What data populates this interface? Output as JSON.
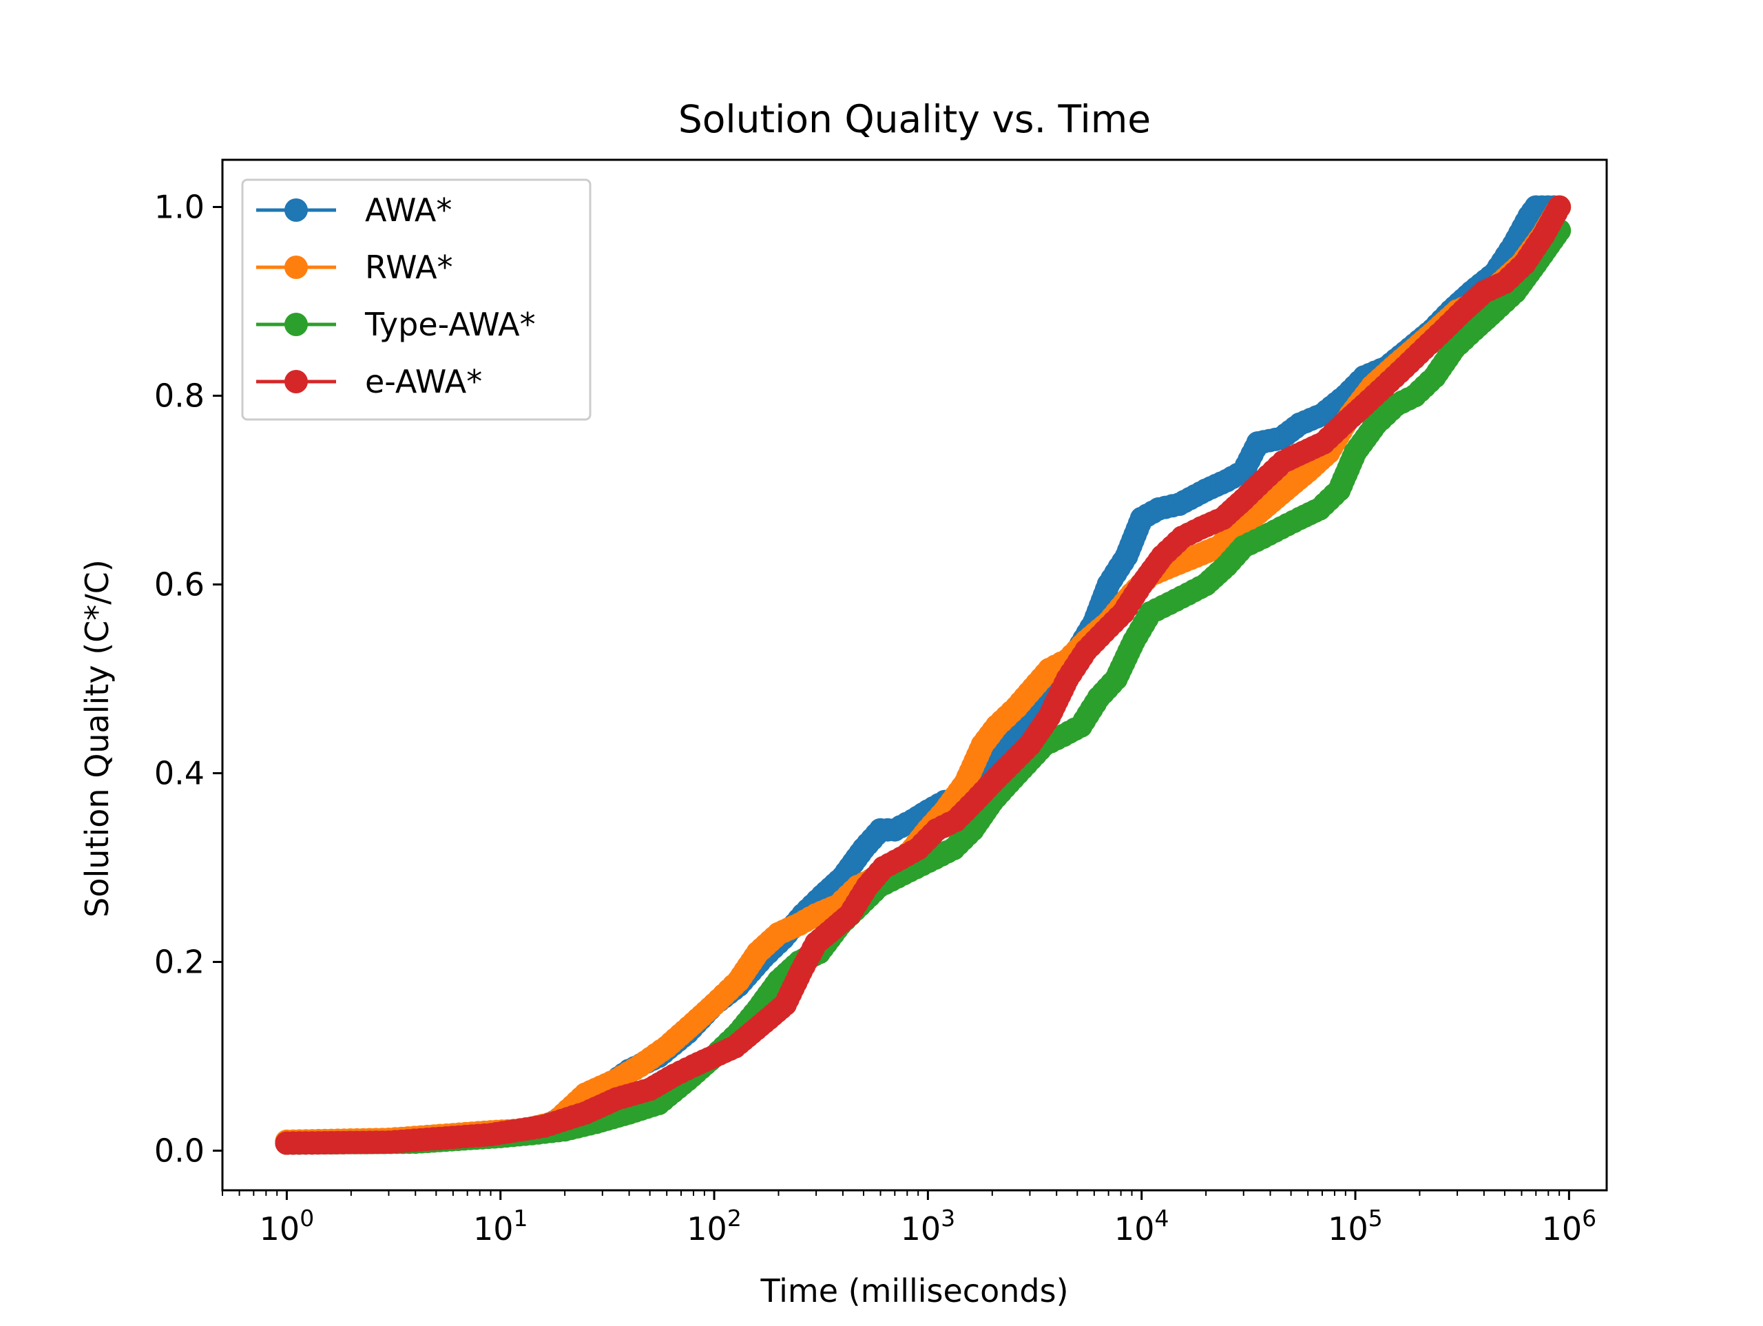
{
  "chart_data": {
    "type": "line",
    "title": "Solution Quality vs. Time",
    "xlabel": "Time (milliseconds)",
    "ylabel": "Solution Quality (C*/C)",
    "xscale": "log",
    "xlim": [
      0.5,
      1500000
    ],
    "ylim": [
      -0.042,
      1.05
    ],
    "xticks": [
      {
        "value": 1,
        "base": "10",
        "exp": "0"
      },
      {
        "value": 10,
        "base": "10",
        "exp": "1"
      },
      {
        "value": 100,
        "base": "10",
        "exp": "2"
      },
      {
        "value": 1000,
        "base": "10",
        "exp": "3"
      },
      {
        "value": 10000,
        "base": "10",
        "exp": "4"
      },
      {
        "value": 100000,
        "base": "10",
        "exp": "5"
      },
      {
        "value": 1000000,
        "base": "10",
        "exp": "6"
      }
    ],
    "yticks": [
      {
        "value": 0.0,
        "label": "0.0"
      },
      {
        "value": 0.2,
        "label": "0.2"
      },
      {
        "value": 0.4,
        "label": "0.4"
      },
      {
        "value": 0.6,
        "label": "0.6"
      },
      {
        "value": 0.8,
        "label": "0.8"
      },
      {
        "value": 1.0,
        "label": "1.0"
      }
    ],
    "grid": false,
    "legend_position": "top-left",
    "series": [
      {
        "name": "AWA*",
        "color": "#1f77b4",
        "points": [
          [
            1,
            0.008
          ],
          [
            3,
            0.009
          ],
          [
            9,
            0.016
          ],
          [
            12,
            0.02
          ],
          [
            17,
            0.027
          ],
          [
            22,
            0.045
          ],
          [
            30,
            0.065
          ],
          [
            40,
            0.085
          ],
          [
            55,
            0.1
          ],
          [
            75,
            0.125
          ],
          [
            100,
            0.155
          ],
          [
            130,
            0.175
          ],
          [
            170,
            0.205
          ],
          [
            210,
            0.225
          ],
          [
            260,
            0.25
          ],
          [
            320,
            0.27
          ],
          [
            400,
            0.29
          ],
          [
            500,
            0.32
          ],
          [
            600,
            0.34
          ],
          [
            700,
            0.34
          ],
          [
            850,
            0.35
          ],
          [
            1000,
            0.36
          ],
          [
            1200,
            0.37
          ],
          [
            1500,
            0.375
          ],
          [
            1800,
            0.4
          ],
          [
            2200,
            0.43
          ],
          [
            2700,
            0.45
          ],
          [
            3300,
            0.47
          ],
          [
            4000,
            0.5
          ],
          [
            5000,
            0.53
          ],
          [
            6000,
            0.56
          ],
          [
            7000,
            0.6
          ],
          [
            8500,
            0.63
          ],
          [
            10000,
            0.67
          ],
          [
            12000,
            0.68
          ],
          [
            15000,
            0.685
          ],
          [
            20000,
            0.7
          ],
          [
            25000,
            0.71
          ],
          [
            30000,
            0.72
          ],
          [
            35000,
            0.75
          ],
          [
            45000,
            0.755
          ],
          [
            55000,
            0.77
          ],
          [
            70000,
            0.78
          ],
          [
            90000,
            0.8
          ],
          [
            110000,
            0.82
          ],
          [
            140000,
            0.83
          ],
          [
            180000,
            0.85
          ],
          [
            230000,
            0.87
          ],
          [
            280000,
            0.89
          ],
          [
            350000,
            0.91
          ],
          [
            450000,
            0.93
          ],
          [
            550000,
            0.96
          ],
          [
            650000,
            0.99
          ],
          [
            700000,
            1.0
          ],
          [
            850000,
            1.0
          ]
        ]
      },
      {
        "name": "RWA*",
        "color": "#ff7f0e",
        "points": [
          [
            1,
            0.01
          ],
          [
            3,
            0.012
          ],
          [
            6,
            0.017
          ],
          [
            9,
            0.02
          ],
          [
            13,
            0.022
          ],
          [
            18,
            0.03
          ],
          [
            25,
            0.06
          ],
          [
            35,
            0.075
          ],
          [
            45,
            0.09
          ],
          [
            60,
            0.11
          ],
          [
            80,
            0.135
          ],
          [
            100,
            0.155
          ],
          [
            130,
            0.18
          ],
          [
            160,
            0.21
          ],
          [
            200,
            0.23
          ],
          [
            250,
            0.24
          ],
          [
            300,
            0.25
          ],
          [
            380,
            0.26
          ],
          [
            470,
            0.28
          ],
          [
            580,
            0.29
          ],
          [
            700,
            0.3
          ],
          [
            850,
            0.32
          ],
          [
            1000,
            0.34
          ],
          [
            1200,
            0.36
          ],
          [
            1500,
            0.39
          ],
          [
            1800,
            0.43
          ],
          [
            2100,
            0.45
          ],
          [
            2600,
            0.47
          ],
          [
            3100,
            0.49
          ],
          [
            3700,
            0.51
          ],
          [
            4500,
            0.52
          ],
          [
            5500,
            0.54
          ],
          [
            7000,
            0.56
          ],
          [
            9000,
            0.59
          ],
          [
            11000,
            0.61
          ],
          [
            14000,
            0.62
          ],
          [
            18000,
            0.63
          ],
          [
            23000,
            0.64
          ],
          [
            29000,
            0.66
          ],
          [
            37000,
            0.68
          ],
          [
            47000,
            0.7
          ],
          [
            60000,
            0.72
          ],
          [
            75000,
            0.74
          ],
          [
            95000,
            0.78
          ],
          [
            120000,
            0.81
          ],
          [
            150000,
            0.83
          ],
          [
            190000,
            0.85
          ],
          [
            240000,
            0.87
          ],
          [
            300000,
            0.89
          ],
          [
            380000,
            0.9
          ],
          [
            480000,
            0.92
          ],
          [
            600000,
            0.94
          ],
          [
            750000,
            0.97
          ],
          [
            900000,
            1.0
          ]
        ]
      },
      {
        "name": "Type-AWA*",
        "color": "#2ca02c",
        "points": [
          [
            1,
            0.008
          ],
          [
            4,
            0.009
          ],
          [
            10,
            0.015
          ],
          [
            14,
            0.018
          ],
          [
            20,
            0.022
          ],
          [
            28,
            0.03
          ],
          [
            40,
            0.04
          ],
          [
            55,
            0.05
          ],
          [
            75,
            0.075
          ],
          [
            100,
            0.1
          ],
          [
            130,
            0.125
          ],
          [
            160,
            0.15
          ],
          [
            200,
            0.18
          ],
          [
            250,
            0.2
          ],
          [
            310,
            0.21
          ],
          [
            390,
            0.24
          ],
          [
            480,
            0.26
          ],
          [
            590,
            0.28
          ],
          [
            720,
            0.29
          ],
          [
            880,
            0.3
          ],
          [
            1080,
            0.31
          ],
          [
            1320,
            0.32
          ],
          [
            1620,
            0.34
          ],
          [
            2000,
            0.37
          ],
          [
            2400,
            0.39
          ],
          [
            2900,
            0.41
          ],
          [
            3500,
            0.43
          ],
          [
            4300,
            0.44
          ],
          [
            5200,
            0.45
          ],
          [
            6300,
            0.48
          ],
          [
            7600,
            0.5
          ],
          [
            9200,
            0.54
          ],
          [
            11000,
            0.57
          ],
          [
            13500,
            0.58
          ],
          [
            16500,
            0.59
          ],
          [
            20000,
            0.6
          ],
          [
            25000,
            0.62
          ],
          [
            30000,
            0.64
          ],
          [
            37000,
            0.65
          ],
          [
            45000,
            0.66
          ],
          [
            55000,
            0.67
          ],
          [
            68000,
            0.68
          ],
          [
            84000,
            0.7
          ],
          [
            100000,
            0.74
          ],
          [
            125000,
            0.77
          ],
          [
            155000,
            0.79
          ],
          [
            190000,
            0.8
          ],
          [
            235000,
            0.82
          ],
          [
            290000,
            0.85
          ],
          [
            360000,
            0.87
          ],
          [
            450000,
            0.89
          ],
          [
            560000,
            0.91
          ],
          [
            700000,
            0.94
          ],
          [
            900000,
            0.975
          ]
        ]
      },
      {
        "name": "e-AWA*",
        "color": "#d62728",
        "points": [
          [
            1,
            0.008
          ],
          [
            3,
            0.009
          ],
          [
            9,
            0.017
          ],
          [
            16,
            0.026
          ],
          [
            25,
            0.04
          ],
          [
            35,
            0.055
          ],
          [
            50,
            0.065
          ],
          [
            65,
            0.08
          ],
          [
            80,
            0.09
          ],
          [
            100,
            0.1
          ],
          [
            125,
            0.11
          ],
          [
            150,
            0.125
          ],
          [
            180,
            0.14
          ],
          [
            215,
            0.155
          ],
          [
            255,
            0.19
          ],
          [
            300,
            0.22
          ],
          [
            360,
            0.235
          ],
          [
            430,
            0.25
          ],
          [
            520,
            0.28
          ],
          [
            620,
            0.3
          ],
          [
            750,
            0.31
          ],
          [
            900,
            0.32
          ],
          [
            1100,
            0.34
          ],
          [
            1350,
            0.35
          ],
          [
            1650,
            0.37
          ],
          [
            2000,
            0.39
          ],
          [
            2450,
            0.41
          ],
          [
            3000,
            0.43
          ],
          [
            3700,
            0.46
          ],
          [
            4500,
            0.5
          ],
          [
            5500,
            0.53
          ],
          [
            6700,
            0.55
          ],
          [
            8200,
            0.57
          ],
          [
            10000,
            0.6
          ],
          [
            12500,
            0.63
          ],
          [
            15500,
            0.65
          ],
          [
            19000,
            0.66
          ],
          [
            24000,
            0.67
          ],
          [
            30000,
            0.69
          ],
          [
            37000,
            0.71
          ],
          [
            46000,
            0.73
          ],
          [
            57000,
            0.74
          ],
          [
            71000,
            0.75
          ],
          [
            88000,
            0.77
          ],
          [
            110000,
            0.79
          ],
          [
            137000,
            0.81
          ],
          [
            170000,
            0.83
          ],
          [
            210000,
            0.85
          ],
          [
            260000,
            0.87
          ],
          [
            320000,
            0.89
          ],
          [
            400000,
            0.91
          ],
          [
            500000,
            0.92
          ],
          [
            620000,
            0.94
          ],
          [
            760000,
            0.97
          ],
          [
            900000,
            1.0
          ]
        ]
      }
    ]
  }
}
